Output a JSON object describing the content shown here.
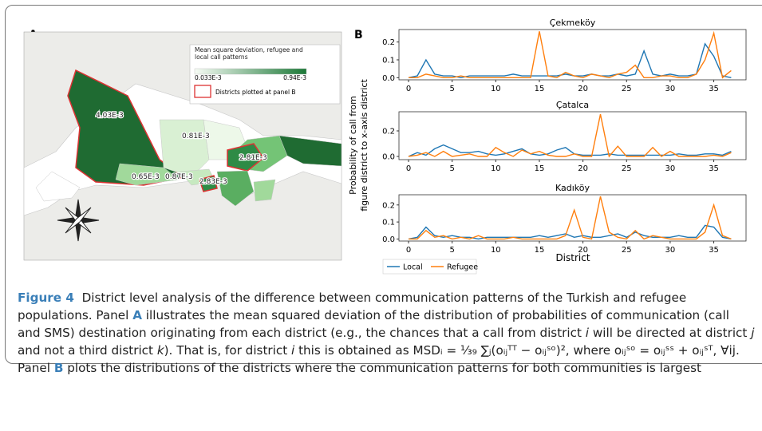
{
  "panel_a": {
    "label": "A",
    "legend_title": "Mean square deviation, refugee and local call patterns",
    "legend_min": "0.033E-3",
    "legend_max": "0.94E-3",
    "legend_outline": "Districts plotted at panel B",
    "district_labels": [
      "4.03E-3",
      "0.81E-3",
      "2.81E-3",
      "0.65E-3",
      "0.87E-3",
      "2.83E-3"
    ]
  },
  "panel_b": {
    "label": "B",
    "ylabel": [
      "Probability of call from",
      "figure district to x-axis district"
    ],
    "xlabel": "District",
    "legend": [
      {
        "name": "Local",
        "color": "#1f77b4"
      },
      {
        "name": "Refugee",
        "color": "#ff7f0e"
      }
    ]
  },
  "chart_data": [
    {
      "type": "line",
      "title": "Çekmeköy",
      "x": [
        0,
        1,
        2,
        3,
        4,
        5,
        6,
        7,
        8,
        9,
        10,
        11,
        12,
        13,
        14,
        15,
        16,
        17,
        18,
        19,
        20,
        21,
        22,
        23,
        24,
        25,
        26,
        27,
        28,
        29,
        30,
        31,
        32,
        33,
        34,
        35,
        36,
        37
      ],
      "xlim": [
        -1.1,
        38.7
      ],
      "xticks": [
        0,
        5,
        10,
        15,
        20,
        25,
        30,
        35
      ],
      "ylim": [
        -0.012,
        0.27
      ],
      "yticks": [
        {
          "value": 0,
          "label": "0.0"
        },
        {
          "value": 0.1,
          "label": "0.1"
        },
        {
          "value": 0.2,
          "label": "0.2"
        }
      ],
      "series": [
        {
          "values": [
            0.0,
            0.01,
            0.1,
            0.02,
            0.01,
            0.01,
            0.0,
            0.01,
            0.01,
            0.01,
            0.01,
            0.01,
            0.02,
            0.01,
            0.01,
            0.01,
            0.01,
            0.01,
            0.02,
            0.01,
            0.01,
            0.02,
            0.01,
            0.01,
            0.02,
            0.01,
            0.02,
            0.15,
            0.02,
            0.01,
            0.02,
            0.01,
            0.01,
            0.02,
            0.19,
            0.12,
            0.01,
            0.0
          ]
        },
        {
          "values": [
            0.0,
            0.0,
            0.02,
            0.01,
            0.0,
            0.0,
            0.01,
            0.0,
            0.0,
            0.0,
            0.0,
            0.0,
            0.0,
            0.0,
            0.0,
            0.26,
            0.01,
            0.0,
            0.03,
            0.01,
            0.0,
            0.02,
            0.01,
            0.0,
            0.02,
            0.03,
            0.07,
            0.0,
            0.0,
            0.01,
            0.01,
            0.0,
            0.0,
            0.02,
            0.1,
            0.25,
            0.0,
            0.04
          ]
        }
      ]
    },
    {
      "type": "line",
      "title": "Çatalca",
      "x": [
        0,
        1,
        2,
        3,
        4,
        5,
        6,
        7,
        8,
        9,
        10,
        11,
        12,
        13,
        14,
        15,
        16,
        17,
        18,
        19,
        20,
        21,
        22,
        23,
        24,
        25,
        26,
        27,
        28,
        29,
        30,
        31,
        32,
        33,
        34,
        35,
        36,
        37
      ],
      "xlim": [
        -1.1,
        38.7
      ],
      "xticks": [
        0,
        5,
        10,
        15,
        20,
        25,
        30,
        35
      ],
      "ylim": [
        -0.025,
        0.35
      ],
      "yticks": [
        {
          "value": 0,
          "label": "0.0"
        },
        {
          "value": 0.2,
          "label": "0.2"
        }
      ],
      "series": [
        {
          "values": [
            0.0,
            0.03,
            0.01,
            0.06,
            0.09,
            0.06,
            0.03,
            0.03,
            0.04,
            0.02,
            0.01,
            0.02,
            0.04,
            0.06,
            0.02,
            0.01,
            0.02,
            0.05,
            0.07,
            0.02,
            0.01,
            0.01,
            0.01,
            0.02,
            0.01,
            0.01,
            0.01,
            0.01,
            0.01,
            0.01,
            0.01,
            0.02,
            0.01,
            0.01,
            0.02,
            0.02,
            0.01,
            0.04
          ]
        },
        {
          "values": [
            0.0,
            0.01,
            0.03,
            0.0,
            0.04,
            0.0,
            0.01,
            0.02,
            0.0,
            0.0,
            0.07,
            0.03,
            0.0,
            0.05,
            0.02,
            0.04,
            0.01,
            0.0,
            0.0,
            0.02,
            0.0,
            0.0,
            0.33,
            0.0,
            0.08,
            0.0,
            0.0,
            0.0,
            0.07,
            0.0,
            0.04,
            0.0,
            0.0,
            0.0,
            0.0,
            0.01,
            0.0,
            0.03
          ]
        }
      ]
    },
    {
      "type": "line",
      "title": "Kadıköy",
      "x": [
        0,
        1,
        2,
        3,
        4,
        5,
        6,
        7,
        8,
        9,
        10,
        11,
        12,
        13,
        14,
        15,
        16,
        17,
        18,
        19,
        20,
        21,
        22,
        23,
        24,
        25,
        26,
        27,
        28,
        29,
        30,
        31,
        32,
        33,
        34,
        35,
        36,
        37
      ],
      "xlim": [
        -1.1,
        38.7
      ],
      "xticks": [
        0,
        5,
        10,
        15,
        20,
        25,
        30,
        35
      ],
      "ylim": [
        -0.012,
        0.26
      ],
      "yticks": [
        {
          "value": 0,
          "label": "0.0"
        },
        {
          "value": 0.1,
          "label": "0.1"
        },
        {
          "value": 0.2,
          "label": "0.2"
        }
      ],
      "series": [
        {
          "values": [
            0.0,
            0.01,
            0.07,
            0.02,
            0.01,
            0.02,
            0.01,
            0.01,
            0.0,
            0.01,
            0.01,
            0.01,
            0.01,
            0.01,
            0.01,
            0.02,
            0.01,
            0.02,
            0.03,
            0.01,
            0.02,
            0.01,
            0.01,
            0.02,
            0.03,
            0.01,
            0.04,
            0.02,
            0.01,
            0.01,
            0.01,
            0.02,
            0.01,
            0.01,
            0.08,
            0.07,
            0.01,
            0.0
          ]
        },
        {
          "values": [
            0.0,
            0.0,
            0.05,
            0.01,
            0.02,
            0.0,
            0.01,
            0.0,
            0.02,
            0.0,
            0.0,
            0.0,
            0.01,
            0.0,
            0.0,
            0.0,
            0.0,
            0.0,
            0.02,
            0.17,
            0.01,
            0.0,
            0.25,
            0.04,
            0.01,
            0.0,
            0.05,
            0.0,
            0.02,
            0.01,
            0.0,
            0.0,
            0.0,
            0.0,
            0.04,
            0.2,
            0.02,
            0.0
          ]
        }
      ]
    }
  ],
  "caption": {
    "segments": [
      {
        "text": "Figure 4",
        "style": "bold"
      },
      {
        "text": "  District level analysis of the difference between communication patterns of the Turkish and refugee populations. Panel ",
        "style": "normal"
      },
      {
        "text": "A",
        "style": "bold"
      },
      {
        "text": " illustrates the mean squared deviation of the distribution of probabilities of communication (call and SMS) destination originating from each district (e.g., the chances that a call from district ",
        "style": "normal"
      },
      {
        "text": "i",
        "style": "italic"
      },
      {
        "text": " will be directed at district ",
        "style": "normal"
      },
      {
        "text": "j",
        "style": "italic"
      },
      {
        "text": " and not a third district ",
        "style": "normal"
      },
      {
        "text": "k",
        "style": "italic"
      },
      {
        "text": "). That is, for district ",
        "style": "normal"
      },
      {
        "text": "i",
        "style": "italic"
      },
      {
        "text": " this is obtained as MSDᵢ = ¹⁄₃₉ ∑ⱼ(oᵢⱼᵀᵀ − oᵢⱼˢᵒ)², where oᵢⱼˢᵒ = oᵢⱼˢˢ + oᵢⱼˢᵀ, ∀ij. Panel ",
        "style": "normal"
      },
      {
        "text": "B",
        "style": "bold"
      },
      {
        "text": " plots the distributions of the districts where the communication patterns for both communities is largest",
        "style": "normal"
      }
    ]
  }
}
